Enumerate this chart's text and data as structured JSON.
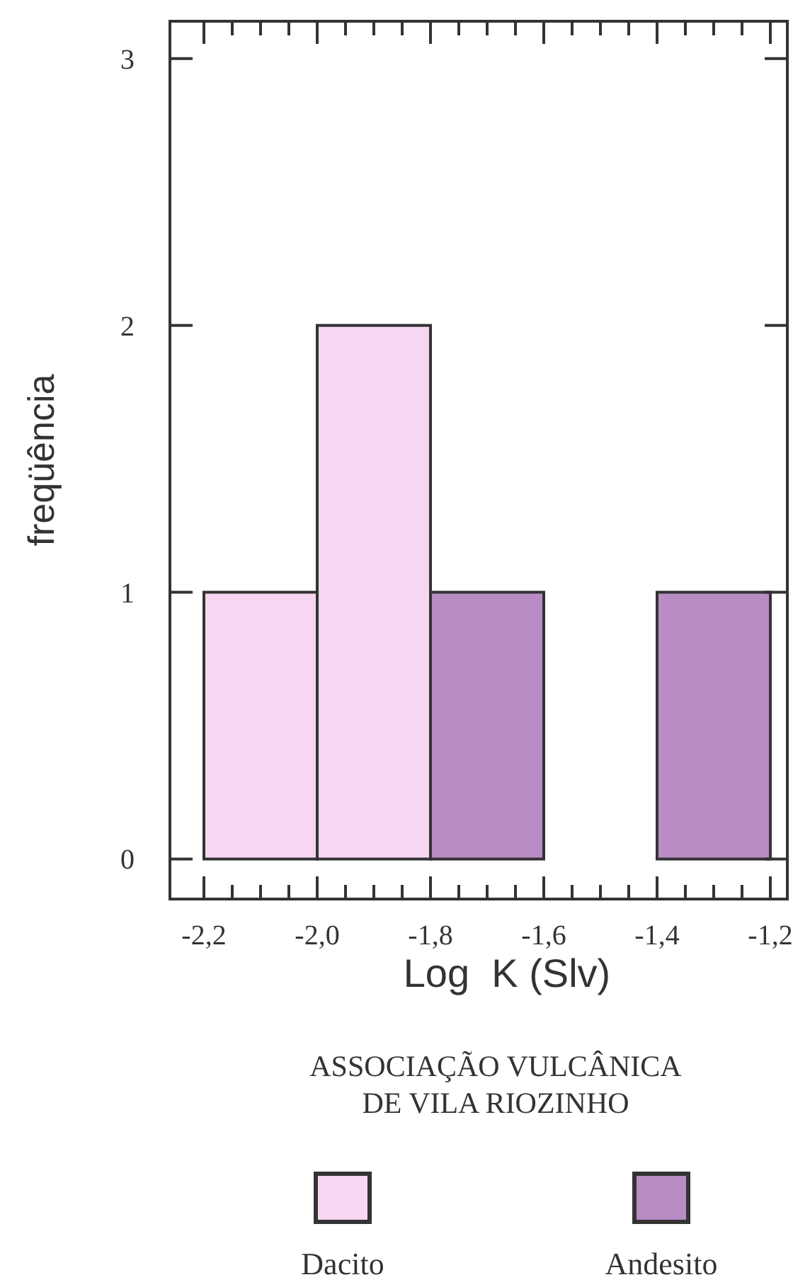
{
  "chart_data": {
    "type": "histogram",
    "bins": [
      -2.2,
      -2.0,
      -1.8,
      -1.6,
      -1.4,
      -1.2
    ],
    "series": [
      {
        "name": "Dacito",
        "color": "#f6d6f0",
        "values": [
          1,
          2,
          0,
          0,
          0
        ]
      },
      {
        "name": "Andesito",
        "color": "#b98cc6",
        "values": [
          0,
          0,
          1,
          0,
          1
        ]
      }
    ],
    "xlabel": "Log  K (Slv)",
    "ylabel": "freqüência",
    "legend_title": "ASSOCIAÇÃO VULCÂNICA DE VILA RIOZINHO",
    "legend": "bottom",
    "xlim": [
      -2.26,
      -1.17
    ],
    "ylim": [
      -0.15,
      3.14
    ],
    "xticks": [
      {
        "value": -2.2,
        "label": "-2,2"
      },
      {
        "value": -2.15,
        "label": null
      },
      {
        "value": -2.1,
        "label": null
      },
      {
        "value": -2.05,
        "label": null
      },
      {
        "value": -2.0,
        "label": "-2,0"
      },
      {
        "value": -1.95,
        "label": null
      },
      {
        "value": -1.9,
        "label": null
      },
      {
        "value": -1.85,
        "label": null
      },
      {
        "value": -1.8,
        "label": "-1,8"
      },
      {
        "value": -1.75,
        "label": null
      },
      {
        "value": -1.7,
        "label": null
      },
      {
        "value": -1.65,
        "label": null
      },
      {
        "value": -1.6,
        "label": "-1,6"
      },
      {
        "value": -1.55,
        "label": null
      },
      {
        "value": -1.5,
        "label": null
      },
      {
        "value": -1.45,
        "label": null
      },
      {
        "value": -1.4,
        "label": "-1,4"
      },
      {
        "value": -1.35,
        "label": null
      },
      {
        "value": -1.3,
        "label": null
      },
      {
        "value": -1.25,
        "label": null
      },
      {
        "value": -1.2,
        "label": "-1,2"
      }
    ],
    "yticks": [
      0,
      1,
      2,
      3
    ]
  }
}
